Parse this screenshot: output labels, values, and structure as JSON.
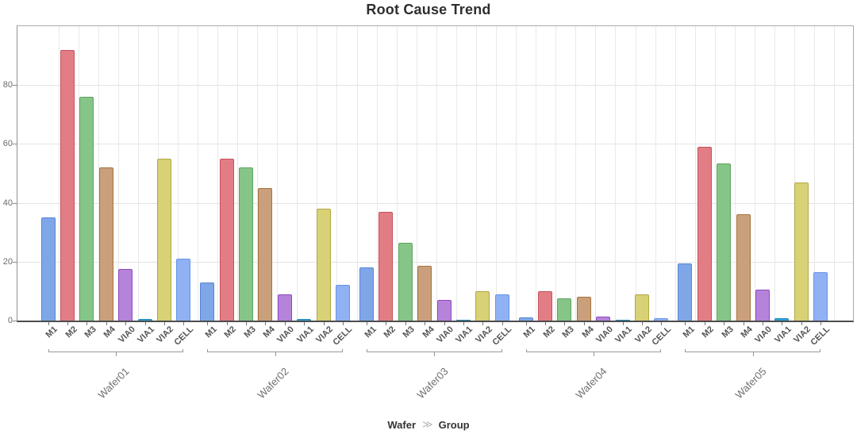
{
  "chart_data": {
    "type": "bar",
    "title": "Root Cause Trend",
    "categories": [
      "M1",
      "M2",
      "M3",
      "M4",
      "VIA0",
      "VIA1",
      "VIA2",
      "CELL"
    ],
    "groups": [
      {
        "name": "Wafer01",
        "values": [
          35,
          92,
          76,
          52,
          17.5,
          0.5,
          55,
          21
        ]
      },
      {
        "name": "Wafer02",
        "values": [
          13,
          55,
          52,
          45,
          9,
          0.5,
          38,
          12
        ]
      },
      {
        "name": "Wafer03",
        "values": [
          18,
          37,
          26.5,
          18.5,
          7,
          0.3,
          10,
          9
        ]
      },
      {
        "name": "Wafer04",
        "values": [
          1,
          10,
          7.5,
          8,
          1.3,
          0.2,
          9,
          0.7
        ]
      },
      {
        "name": "Wafer05",
        "values": [
          19.5,
          59,
          53.5,
          36,
          10.5,
          0.7,
          47,
          16.5
        ]
      }
    ],
    "category_colors": {
      "M1": {
        "fill": "#7fa7e8",
        "stroke": "#5585d6"
      },
      "M2": {
        "fill": "#e27d85",
        "stroke": "#c4515c"
      },
      "M3": {
        "fill": "#86c588",
        "stroke": "#5aa55f"
      },
      "M4": {
        "fill": "#c9a07b",
        "stroke": "#a6723c"
      },
      "VIA0": {
        "fill": "#b583da",
        "stroke": "#9048c0"
      },
      "VIA1": {
        "fill": "#2d9fd2",
        "stroke": "#2489bb"
      },
      "VIA2": {
        "fill": "#d8d176",
        "stroke": "#b0a844"
      },
      "CELL": {
        "fill": "#90b1f3",
        "stroke": "#6594ea"
      }
    },
    "ylim": [
      0,
      100
    ],
    "yticks": [
      0,
      20,
      40,
      60,
      80
    ],
    "grid": true,
    "legend_position": "none",
    "axis_footer": {
      "primary": "Wafer",
      "separator": "≫",
      "secondary": "Group"
    }
  }
}
